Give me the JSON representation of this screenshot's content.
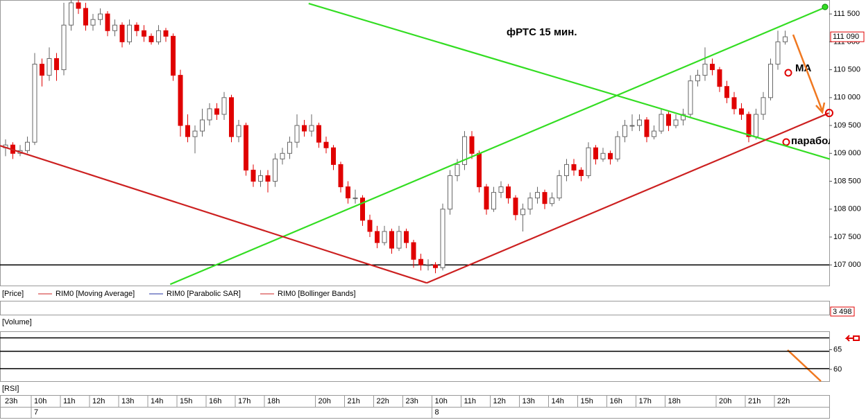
{
  "chart_data": {
    "type": "candlestick",
    "title": "фРТС   15 мин.",
    "annotations": [
      "MA",
      "параболик"
    ],
    "ylim": [
      106630,
      111750
    ],
    "yticks": [
      {
        "value": 107000,
        "label": "107 000"
      },
      {
        "value": 107500,
        "label": "107 500"
      },
      {
        "value": 108000,
        "label": "108 000"
      },
      {
        "value": 108500,
        "label": "108 500"
      },
      {
        "value": 109000,
        "label": "109 000"
      },
      {
        "value": 109500,
        "label": "109 500"
      },
      {
        "value": 110000,
        "label": "110 000"
      },
      {
        "value": 110500,
        "label": "110 500"
      },
      {
        "value": 111000,
        "label": "111 000"
      },
      {
        "value": 111500,
        "label": "111 500"
      }
    ],
    "last_price": {
      "value": 111090,
      "label": "111 090"
    },
    "up_color": "#ffffff",
    "down_color": "#e00000",
    "support_level": 107000,
    "categories": [
      "23h",
      null,
      null,
      null,
      "10h",
      null,
      null,
      null,
      "11h",
      null,
      null,
      null,
      "12h",
      null,
      null,
      null,
      "13h",
      null,
      null,
      null,
      "14h",
      null,
      null,
      null,
      "15h",
      null,
      null,
      null,
      "16h",
      null,
      null,
      null,
      "17h",
      null,
      null,
      null,
      "18h",
      null,
      null,
      null,
      null,
      null,
      null,
      "20h",
      null,
      null,
      null,
      "21h",
      null,
      null,
      null,
      "22h",
      null,
      null,
      null,
      "23h",
      null,
      null,
      null,
      "10h",
      null,
      null,
      null,
      "11h",
      null,
      null,
      null,
      "12h",
      null,
      null,
      null,
      "13h",
      null,
      null,
      null,
      "14h",
      null,
      null,
      null,
      "15h",
      null,
      null,
      null,
      "16h",
      null,
      null,
      null,
      "17h",
      null,
      null,
      null,
      "18h",
      null,
      null,
      null,
      null,
      null,
      null,
      "20h",
      null,
      null,
      null,
      "21h",
      null,
      null,
      null,
      "22h",
      null
    ],
    "days": [
      null,
      null,
      null,
      null,
      "7",
      null,
      null,
      null,
      null,
      null,
      null,
      null,
      null,
      null,
      null,
      null,
      null,
      null,
      null,
      null,
      null,
      null,
      null,
      null,
      null,
      null,
      null,
      null,
      null,
      null,
      null,
      null,
      null,
      null,
      null,
      null,
      null,
      null,
      null,
      null,
      null,
      null,
      null,
      null,
      null,
      null,
      null,
      null,
      null,
      null,
      null,
      null,
      null,
      null,
      null,
      null,
      null,
      null,
      null,
      "8",
      null,
      null,
      null,
      null,
      null,
      null,
      null,
      null,
      null,
      null,
      null,
      null,
      null,
      null,
      null,
      null,
      null,
      null,
      null,
      null,
      null,
      null,
      null,
      null,
      null,
      null,
      null,
      null,
      null,
      null,
      null,
      null,
      null,
      null,
      null,
      null,
      null,
      null,
      null,
      null,
      null,
      null,
      null,
      null,
      null,
      null,
      null,
      null
    ],
    "ohlc": [
      [
        109100,
        109250,
        108950,
        109150
      ],
      [
        109150,
        109200,
        108900,
        109000
      ],
      [
        109000,
        109150,
        108950,
        109050
      ],
      [
        109050,
        109300,
        109000,
        109200
      ],
      [
        109200,
        110800,
        109150,
        110600
      ],
      [
        110600,
        110700,
        110200,
        110400
      ],
      [
        110400,
        110900,
        110300,
        110700
      ],
      [
        110700,
        110800,
        110300,
        110500
      ],
      [
        110500,
        111700,
        110400,
        111300
      ],
      [
        111300,
        111900,
        111200,
        111700
      ],
      [
        111700,
        111800,
        111500,
        111600
      ],
      [
        111600,
        111700,
        111200,
        111300
      ],
      [
        111300,
        111500,
        111200,
        111400
      ],
      [
        111400,
        111600,
        111300,
        111500
      ],
      [
        111500,
        111550,
        111100,
        111200
      ],
      [
        111200,
        111400,
        111100,
        111300
      ],
      [
        111300,
        111350,
        110900,
        111000
      ],
      [
        111000,
        111400,
        110950,
        111300
      ],
      [
        111300,
        111350,
        111100,
        111200
      ],
      [
        111200,
        111300,
        111000,
        111100
      ],
      [
        111100,
        111150,
        110950,
        111000
      ],
      [
        111000,
        111300,
        110950,
        111200
      ],
      [
        111200,
        111250,
        111000,
        111100
      ],
      [
        111100,
        111150,
        110300,
        110400
      ],
      [
        110400,
        110500,
        109300,
        109500
      ],
      [
        109500,
        109700,
        109200,
        109300
      ],
      [
        109300,
        109500,
        109000,
        109400
      ],
      [
        109400,
        109800,
        109300,
        109600
      ],
      [
        109600,
        109900,
        109500,
        109800
      ],
      [
        109800,
        109900,
        109600,
        109700
      ],
      [
        109700,
        110100,
        109600,
        110000
      ],
      [
        110000,
        110050,
        109200,
        109300
      ],
      [
        109300,
        109600,
        109200,
        109500
      ],
      [
        109500,
        109550,
        108600,
        108700
      ],
      [
        108700,
        108800,
        108400,
        108500
      ],
      [
        108500,
        108700,
        108400,
        108600
      ],
      [
        108600,
        108700,
        108300,
        108500
      ],
      [
        108500,
        109000,
        108400,
        108900
      ],
      [
        108900,
        109100,
        108800,
        109000
      ],
      [
        109000,
        109300,
        108900,
        109200
      ],
      [
        109200,
        109700,
        109100,
        109500
      ],
      [
        109500,
        109600,
        109300,
        109400
      ],
      [
        109400,
        109700,
        109300,
        109500
      ],
      [
        109500,
        109550,
        109100,
        109200
      ],
      [
        109200,
        109300,
        109000,
        109100
      ],
      [
        109100,
        109150,
        108700,
        108800
      ],
      [
        108800,
        108850,
        108300,
        108400
      ],
      [
        108400,
        108500,
        108100,
        108200
      ],
      [
        108200,
        108350,
        108100,
        108200
      ],
      [
        108200,
        108250,
        107700,
        107800
      ],
      [
        107800,
        107900,
        107500,
        107600
      ],
      [
        107600,
        107700,
        107300,
        107400
      ],
      [
        107400,
        107700,
        107350,
        107600
      ],
      [
        107600,
        107650,
        107200,
        107300
      ],
      [
        107300,
        107700,
        107250,
        107600
      ],
      [
        107600,
        107650,
        107300,
        107400
      ],
      [
        107400,
        107450,
        106950,
        107100
      ],
      [
        107100,
        107200,
        106900,
        107000
      ],
      [
        107000,
        107100,
        106900,
        107000
      ],
      [
        107000,
        107050,
        106850,
        106950
      ],
      [
        106950,
        108100,
        106900,
        108000
      ],
      [
        108000,
        108700,
        107900,
        108600
      ],
      [
        108600,
        108900,
        108500,
        108800
      ],
      [
        108800,
        109400,
        108700,
        109300
      ],
      [
        109300,
        109400,
        108900,
        109000
      ],
      [
        109000,
        109050,
        108300,
        108400
      ],
      [
        108400,
        108450,
        107900,
        108000
      ],
      [
        108000,
        108400,
        107950,
        108300
      ],
      [
        108300,
        108500,
        108200,
        108400
      ],
      [
        108400,
        108450,
        108100,
        108200
      ],
      [
        108200,
        108250,
        107800,
        107900
      ],
      [
        107900,
        108100,
        107600,
        108000
      ],
      [
        108000,
        108300,
        107900,
        108200
      ],
      [
        108200,
        108400,
        108100,
        108300
      ],
      [
        108300,
        108350,
        108000,
        108100
      ],
      [
        108100,
        108300,
        108050,
        108200
      ],
      [
        108200,
        108700,
        108150,
        108600
      ],
      [
        108600,
        108900,
        108500,
        108800
      ],
      [
        108800,
        108900,
        108600,
        108700
      ],
      [
        108700,
        108750,
        108500,
        108600
      ],
      [
        108600,
        109200,
        108550,
        109100
      ],
      [
        109100,
        109150,
        108800,
        108900
      ],
      [
        108900,
        109100,
        108850,
        109000
      ],
      [
        109000,
        109050,
        108800,
        108900
      ],
      [
        108900,
        109400,
        108850,
        109300
      ],
      [
        109300,
        109600,
        109200,
        109500
      ],
      [
        109500,
        109700,
        109400,
        109500
      ],
      [
        109500,
        109700,
        109400,
        109600
      ],
      [
        109600,
        109650,
        109200,
        109300
      ],
      [
        109300,
        109500,
        109250,
        109400
      ],
      [
        109400,
        109800,
        109350,
        109700
      ],
      [
        109700,
        109750,
        109400,
        109500
      ],
      [
        109500,
        109700,
        109450,
        109600
      ],
      [
        109600,
        109800,
        109500,
        109700
      ],
      [
        109700,
        110400,
        109650,
        110300
      ],
      [
        110300,
        110500,
        110200,
        110400
      ],
      [
        110400,
        110900,
        110300,
        110600
      ],
      [
        110600,
        110700,
        110400,
        110500
      ],
      [
        110500,
        110550,
        110100,
        110200
      ],
      [
        110200,
        110300,
        109900,
        110000
      ],
      [
        110000,
        110100,
        109700,
        109800
      ],
      [
        109800,
        109900,
        109600,
        109700
      ],
      [
        109700,
        109750,
        109200,
        109300
      ],
      [
        109300,
        109800,
        109250,
        109700
      ],
      [
        109700,
        110100,
        109600,
        110000
      ],
      [
        110000,
        110700,
        109950,
        110600
      ],
      [
        110600,
        111200,
        110500,
        111000
      ],
      [
        111000,
        111200,
        110950,
        111090
      ]
    ],
    "trendlines": [
      {
        "color": "#33dd22",
        "x": [
          41.6,
          118.1
        ],
        "y": [
          111687,
          108703
        ]
      },
      {
        "color": "#33dd22",
        "x": [
          22.6,
          112.6
        ],
        "y": [
          106652,
          111624
        ]
      },
      {
        "color": "#cc2020",
        "x": [
          -0.76,
          57.8
        ],
        "y": [
          109138,
          106677
        ]
      },
      {
        "color": "#cc2020",
        "x": [
          57.8,
          113
        ],
        "y": [
          106677,
          109722
        ]
      }
    ],
    "legend_title": "[Price]",
    "indicators": [
      {
        "name": "RIM0 [Moving Average]",
        "color": "#cc2020"
      },
      {
        "name": "RIM0 [Parabolic SAR]",
        "color": "#2030a0"
      },
      {
        "name": "RIM0 [Bollinger Bands]",
        "color": "#cc2020"
      }
    ],
    "volume": {
      "label": "[Volume]",
      "last": {
        "value": 3498,
        "label": "3 498"
      }
    },
    "rsi": {
      "label": "[RSI]",
      "ylim": [
        57,
        69.5
      ],
      "yticks": [
        60,
        65
      ],
      "levels": [
        68,
        64.6,
        60.2
      ]
    }
  }
}
